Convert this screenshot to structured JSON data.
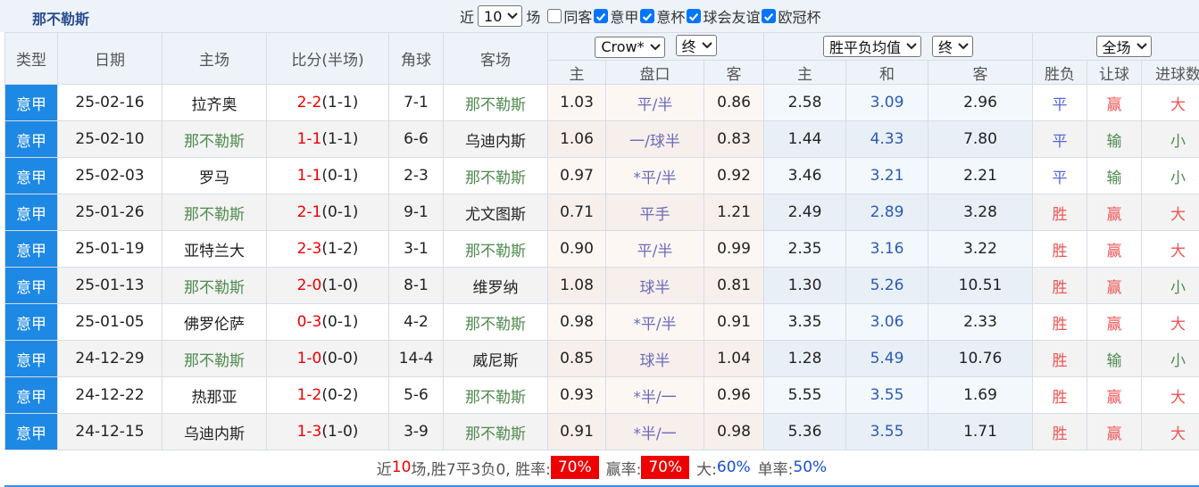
{
  "header": {
    "title": "那不勒斯",
    "filters": {
      "recent_prefix": "近",
      "recent_count": "10",
      "recent_suffix": "场",
      "options": [
        {
          "label": "同客",
          "checked": false
        },
        {
          "label": "意甲",
          "checked": true
        },
        {
          "label": "意杯",
          "checked": true
        },
        {
          "label": "球会友谊",
          "checked": true
        },
        {
          "label": "欧冠杯",
          "checked": true
        }
      ]
    }
  },
  "table": {
    "columns": [
      "类型",
      "日期",
      "主场",
      "比分(半场)",
      "角球",
      "客场"
    ],
    "selects": [
      [
        "Crow*",
        "终"
      ],
      [
        "胜平负均值",
        "终"
      ],
      [
        "全场"
      ]
    ],
    "subcolumns": [
      "主",
      "盘口",
      "客",
      "主",
      "和",
      "客",
      "胜负",
      "让球",
      "进球数"
    ],
    "rows": [
      {
        "type": "意甲",
        "date": "25-02-16",
        "home": "拉齐奥",
        "score": "2-2",
        "half": "(1-1)",
        "corners": "7-1",
        "away": "那不勒斯",
        "odds_home": "1.03",
        "handicap": "平/半",
        "odds_away": "0.86",
        "avg_home": "2.58",
        "avg_draw": "3.09",
        "avg_away": "2.96",
        "result": "平",
        "handicap_result": "赢",
        "goals_result": "大"
      },
      {
        "type": "意甲",
        "date": "25-02-10",
        "home": "那不勒斯",
        "score": "1-1",
        "half": "(1-1)",
        "corners": "6-6",
        "away": "乌迪内斯",
        "odds_home": "1.06",
        "handicap": "一/球半",
        "odds_away": "0.83",
        "avg_home": "1.44",
        "avg_draw": "4.33",
        "avg_away": "7.80",
        "result": "平",
        "handicap_result": "输",
        "goals_result": "小"
      },
      {
        "type": "意甲",
        "date": "25-02-03",
        "home": "罗马",
        "score": "1-1",
        "half": "(0-1)",
        "corners": "2-3",
        "away": "那不勒斯",
        "odds_home": "0.97",
        "handicap": "*平/半",
        "odds_away": "0.92",
        "avg_home": "3.46",
        "avg_draw": "3.21",
        "avg_away": "2.21",
        "result": "平",
        "handicap_result": "输",
        "goals_result": "小"
      },
      {
        "type": "意甲",
        "date": "25-01-26",
        "home": "那不勒斯",
        "score": "2-1",
        "half": "(0-1)",
        "corners": "9-1",
        "away": "尤文图斯",
        "odds_home": "0.71",
        "handicap": "平手",
        "odds_away": "1.21",
        "avg_home": "2.49",
        "avg_draw": "2.89",
        "avg_away": "3.28",
        "result": "胜",
        "handicap_result": "赢",
        "goals_result": "大"
      },
      {
        "type": "意甲",
        "date": "25-01-19",
        "home": "亚特兰大",
        "score": "2-3",
        "half": "(1-2)",
        "corners": "3-1",
        "away": "那不勒斯",
        "odds_home": "0.90",
        "handicap": "平/半",
        "odds_away": "0.99",
        "avg_home": "2.35",
        "avg_draw": "3.16",
        "avg_away": "3.22",
        "result": "胜",
        "handicap_result": "赢",
        "goals_result": "大"
      },
      {
        "type": "意甲",
        "date": "25-01-13",
        "home": "那不勒斯",
        "score": "2-0",
        "half": "(1-0)",
        "corners": "8-1",
        "away": "维罗纳",
        "odds_home": "1.08",
        "handicap": "球半",
        "odds_away": "0.81",
        "avg_home": "1.30",
        "avg_draw": "5.26",
        "avg_away": "10.51",
        "result": "胜",
        "handicap_result": "赢",
        "goals_result": "小"
      },
      {
        "type": "意甲",
        "date": "25-01-05",
        "home": "佛罗伦萨",
        "score": "0-3",
        "half": "(0-1)",
        "corners": "4-2",
        "away": "那不勒斯",
        "odds_home": "0.98",
        "handicap": "*平/半",
        "odds_away": "0.91",
        "avg_home": "3.35",
        "avg_draw": "3.06",
        "avg_away": "2.33",
        "result": "胜",
        "handicap_result": "赢",
        "goals_result": "大"
      },
      {
        "type": "意甲",
        "date": "24-12-29",
        "home": "那不勒斯",
        "score": "1-0",
        "half": "(0-0)",
        "corners": "14-4",
        "away": "威尼斯",
        "odds_home": "0.85",
        "handicap": "球半",
        "odds_away": "1.04",
        "avg_home": "1.28",
        "avg_draw": "5.49",
        "avg_away": "10.76",
        "result": "胜",
        "handicap_result": "输",
        "goals_result": "小"
      },
      {
        "type": "意甲",
        "date": "24-12-22",
        "home": "热那亚",
        "score": "1-2",
        "half": "(0-2)",
        "corners": "5-6",
        "away": "那不勒斯",
        "odds_home": "0.93",
        "handicap": "*半/一",
        "odds_away": "0.96",
        "avg_home": "5.55",
        "avg_draw": "3.55",
        "avg_away": "1.69",
        "result": "胜",
        "handicap_result": "赢",
        "goals_result": "大"
      },
      {
        "type": "意甲",
        "date": "24-12-15",
        "home": "乌迪内斯",
        "score": "1-3",
        "half": "(1-0)",
        "corners": "3-9",
        "away": "那不勒斯",
        "odds_home": "0.91",
        "handicap": "*半/一",
        "odds_away": "0.98",
        "avg_home": "5.36",
        "avg_draw": "3.55",
        "avg_away": "1.71",
        "result": "胜",
        "handicap_result": "赢",
        "goals_result": "大"
      }
    ]
  },
  "footer": {
    "prefix": "近",
    "count": "10",
    "summary": "场,胜7平3负0, 胜率:",
    "win_rate": "70%",
    "handicap_label": "赢率:",
    "handicap_rate": "70%",
    "over_label": "大:",
    "over_rate": "60%",
    "odd_label": "单率:",
    "odd_rate": "50%"
  }
}
